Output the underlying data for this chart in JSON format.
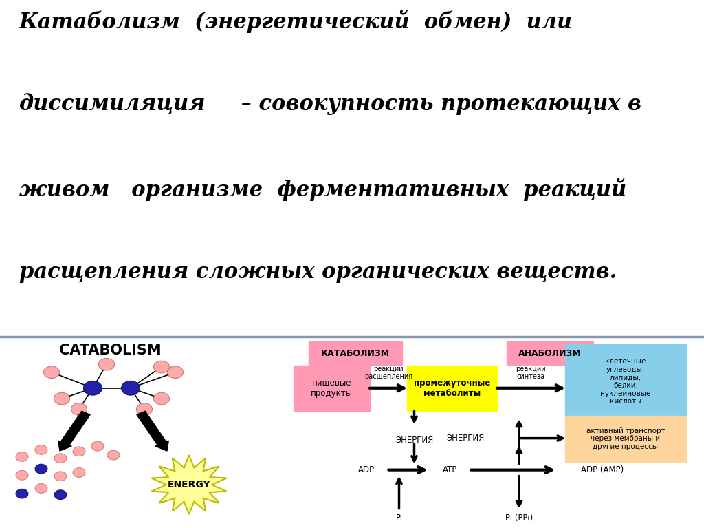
{
  "bg_color": "#ffffff",
  "line1": "Катаболизм  (энергетический  обмен)  или",
  "line2a": "диссимиляция",
  "line2b": " – совокупность протекающих в",
  "line3": "живом   организме  ферментативных  реакций",
  "line4": "расщепления сложных органических веществ.",
  "catabolism_label": "CATABOLISM",
  "energy_label": "ENERGY",
  "katab_label": "КАТАБОЛИЗМ",
  "anab_label": "АНАБОЛИЗМ",
  "food_label": "пищевые\nпродукты",
  "react_razsh": "реакции\nрасщепления",
  "inter_label": "промежуточные\nметаболиты",
  "react_sint": "реакции\nсинтеза",
  "cell_label": "клеточные\nуглеводы,\nлипиды,\nбелки,\nнуклеиновые\nкислоты",
  "energy_left": "ЭНЕРГИЯ",
  "energy_right": "ЭНЕРГИЯ",
  "active_label": "активный транспорт\nчерез мембраны и\nдругие процессы",
  "adp_label": "ADP",
  "atp_label": "ATP",
  "adpamp_label": "ADP (AMP)",
  "pi_label": "Pi",
  "pippi_label": "Pi (PPi)",
  "pink_color": "#ff99b4",
  "yellow_color": "#ffff00",
  "blue_color": "#87ceeb",
  "peach_color": "#ffd59e",
  "star_fill": "#ffff99",
  "star_edge": "#bbbb00",
  "node_blue": "#2222aa",
  "node_pink": "#ffaaaa",
  "divider_color": "#8899aa"
}
